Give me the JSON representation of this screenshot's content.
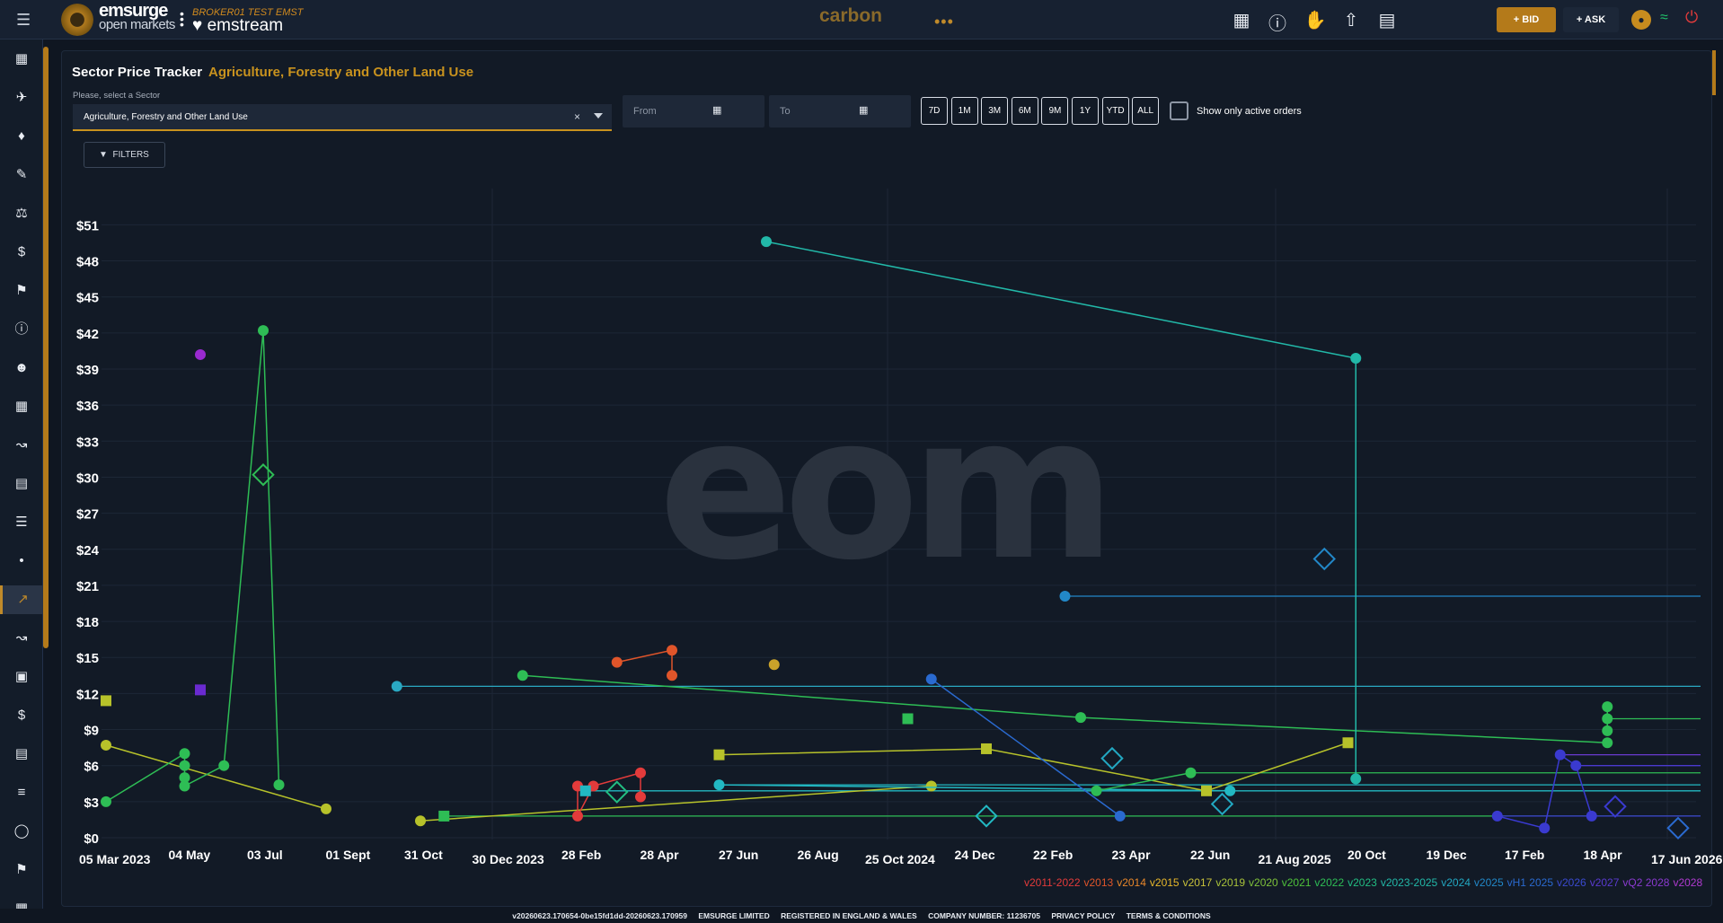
{
  "header": {
    "logo_line1": "emsurge",
    "logo_line2": "open markets",
    "broker": "BROKER01 TEST EMST",
    "product": "emstream",
    "center_title": "carbon",
    "bid_label": "+ BID",
    "ask_label": "+ ASK",
    "icons": [
      "add-order-icon",
      "info-icon",
      "handshake-icon",
      "upload-icon",
      "list-add-icon"
    ]
  },
  "sidebar": {
    "items": [
      "dashboard-icon",
      "flight-icon",
      "handshake-icon",
      "note-add-icon",
      "balance-icon",
      "currency-exchange-icon",
      "tag-icon",
      "info-icon",
      "people-icon",
      "table-icon",
      "analytics-icon",
      "article-icon",
      "list-icon",
      "bubble-chart-icon",
      "price-tracker-icon",
      "trending-icon",
      "briefcase-icon",
      "dollar-icon",
      "bar-chart-icon",
      "translate-icon",
      "globe-icon",
      "flag-icon",
      "grid-icon"
    ],
    "active_index": 14
  },
  "page": {
    "title": "Sector Price Tracker",
    "subtitle": "Agriculture, Forestry and Other Land Use",
    "sector_label": "Please, select a Sector",
    "sector_value": "Agriculture, Forestry and Other Land Use",
    "from_placeholder": "From",
    "to_placeholder": "To",
    "ranges": [
      "7D",
      "1M",
      "3M",
      "6M",
      "9M",
      "1Y",
      "YTD",
      "ALL"
    ],
    "active_only_label": "Show only active orders",
    "filters_label": "FILTERS"
  },
  "chart_data": {
    "type": "scatter",
    "title": "",
    "xlabel": "",
    "ylabel": "",
    "ylim": [
      0,
      52
    ],
    "y_ticks": [
      "$0",
      "$3",
      "$6",
      "$9",
      "$12",
      "$15",
      "$18",
      "$21",
      "$24",
      "$27",
      "$30",
      "$33",
      "$36",
      "$39",
      "$42",
      "$45",
      "$48",
      "$51"
    ],
    "x_ticks": [
      "05 Mar 2023",
      "04 May",
      "03 Jul",
      "01 Sept",
      "31 Oct",
      "30 Dec 2023",
      "28 Feb",
      "28 Apr",
      "27 Jun",
      "26 Aug",
      "25 Oct 2024",
      "24 Dec",
      "22 Feb",
      "23 Apr",
      "22 Jun",
      "21 Aug 2025",
      "20 Oct",
      "19 Dec",
      "17 Feb",
      "18 Apr",
      "17 Jun 2026"
    ],
    "grid": true,
    "watermark": "eom",
    "legend": [
      {
        "name": "v2011-2022",
        "color": "#e33b3b"
      },
      {
        "name": "v2013",
        "color": "#e0552a"
      },
      {
        "name": "v2014",
        "color": "#e8872a"
      },
      {
        "name": "v2015",
        "color": "#e8b82a"
      },
      {
        "name": "v2017",
        "color": "#c9c23a"
      },
      {
        "name": "v2019",
        "color": "#a8c23a"
      },
      {
        "name": "v2020",
        "color": "#7ec23a"
      },
      {
        "name": "v2021",
        "color": "#4ec23a"
      },
      {
        "name": "v2022",
        "color": "#2ebd55"
      },
      {
        "name": "v2023",
        "color": "#22bd82"
      },
      {
        "name": "v2023-2025",
        "color": "#22b8a8"
      },
      {
        "name": "v2024",
        "color": "#22a8c2"
      },
      {
        "name": "v2025",
        "color": "#2288c8"
      },
      {
        "name": "vH1 2025",
        "color": "#2a6ad0"
      },
      {
        "name": "v2026",
        "color": "#3a4ad0"
      },
      {
        "name": "v2027",
        "color": "#5a3ad0"
      },
      {
        "name": "vQ2 2028",
        "color": "#8a3ad0"
      },
      {
        "name": "v2028",
        "color": "#b03ad0"
      }
    ],
    "series": [
      {
        "color": "#b7c22a",
        "shape": "circle",
        "points": [
          [
            0.0,
            7.7
          ],
          [
            2.8,
            2.4
          ]
        ]
      },
      {
        "color": "#2ebd55",
        "shape": "circle",
        "points": [
          [
            0.0,
            3.0
          ],
          [
            1.0,
            7.0
          ],
          [
            1.0,
            6.0
          ],
          [
            1.0,
            5.0
          ],
          [
            1.0,
            4.3
          ],
          [
            1.5,
            6.0
          ],
          [
            2.0,
            42.2
          ],
          [
            2.2,
            4.4
          ]
        ]
      },
      {
        "color": "#b7c22a",
        "shape": "square",
        "points": [
          [
            0.0,
            11.4
          ]
        ]
      },
      {
        "color": "#9a2ad0",
        "shape": "circle",
        "points": [
          [
            1.2,
            40.2
          ]
        ]
      },
      {
        "color": "#6a2ad0",
        "shape": "square",
        "points": [
          [
            1.2,
            12.3
          ]
        ]
      },
      {
        "color": "#2aa8c2",
        "shape": "circle",
        "points": [
          [
            3.7,
            12.6
          ]
        ]
      },
      {
        "color": "#2ebd55",
        "shape": "circle",
        "points": [
          [
            5.3,
            13.5
          ],
          [
            12.4,
            10.0
          ],
          [
            19.1,
            7.9
          ]
        ]
      },
      {
        "color": "#b7c22a",
        "shape": "circle",
        "points": [
          [
            4.0,
            1.4
          ],
          [
            10.5,
            4.3
          ]
        ]
      },
      {
        "color": "#2ebd55",
        "shape": "square",
        "points": [
          [
            4.3,
            1.8
          ]
        ]
      },
      {
        "color": "#e33b3b",
        "shape": "circle",
        "points": [
          [
            6.0,
            4.3
          ],
          [
            6.0,
            1.8
          ],
          [
            6.2,
            4.3
          ],
          [
            6.8,
            5.4
          ],
          [
            6.8,
            3.4
          ]
        ]
      },
      {
        "color": "#e0552a",
        "shape": "circle",
        "points": [
          [
            6.5,
            14.6
          ],
          [
            7.2,
            15.6
          ],
          [
            7.2,
            13.5
          ]
        ]
      },
      {
        "color": "#c9a22a",
        "shape": "circle",
        "points": [
          [
            8.5,
            14.4
          ]
        ]
      },
      {
        "color": "#22b8a8",
        "shape": "circle",
        "points": [
          [
            8.4,
            49.6
          ],
          [
            15.9,
            39.9
          ],
          [
            15.9,
            4.9
          ]
        ]
      },
      {
        "color": "#22b8c2",
        "shape": "square",
        "points": [
          [
            6.1,
            3.9
          ]
        ]
      },
      {
        "color": "#22b8c2",
        "shape": "circle",
        "points": [
          [
            7.8,
            4.4
          ],
          [
            14.3,
            3.9
          ]
        ]
      },
      {
        "color": "#b7c22a",
        "shape": "square",
        "points": [
          [
            7.8,
            6.9
          ],
          [
            11.2,
            7.4
          ],
          [
            14.0,
            3.9
          ],
          [
            15.8,
            7.9
          ]
        ]
      },
      {
        "color": "#2ebd55",
        "shape": "square",
        "points": [
          [
            10.2,
            9.9
          ]
        ]
      },
      {
        "color": "#2a6ad0",
        "shape": "circle",
        "points": [
          [
            10.5,
            13.2
          ],
          [
            12.9,
            1.8
          ]
        ]
      },
      {
        "color": "#2288c8",
        "shape": "circle",
        "points": [
          [
            12.2,
            20.1
          ]
        ]
      },
      {
        "color": "#2ebd55",
        "shape": "circle",
        "points": [
          [
            12.6,
            3.9
          ],
          [
            13.8,
            5.4
          ]
        ]
      },
      {
        "color": "#3a3ad0",
        "shape": "circle",
        "points": [
          [
            17.7,
            1.8
          ],
          [
            18.3,
            0.8
          ],
          [
            18.5,
            6.9
          ],
          [
            18.7,
            6.0
          ],
          [
            18.9,
            1.8
          ]
        ]
      },
      {
        "color": "#2ebd55",
        "shape": "circle",
        "points": [
          [
            19.1,
            10.9
          ],
          [
            19.1,
            9.9
          ],
          [
            19.1,
            8.9
          ]
        ]
      }
    ]
  },
  "footer": {
    "version": "v20260623.170654-0be15fd1dd-20260623.170959",
    "company": "EMSURGE LIMITED",
    "registered": "REGISTERED IN ENGLAND & WALES",
    "number": "COMPANY NUMBER: 11236705",
    "privacy": "PRIVACY POLICY",
    "terms": "TERMS & CONDITIONS"
  }
}
